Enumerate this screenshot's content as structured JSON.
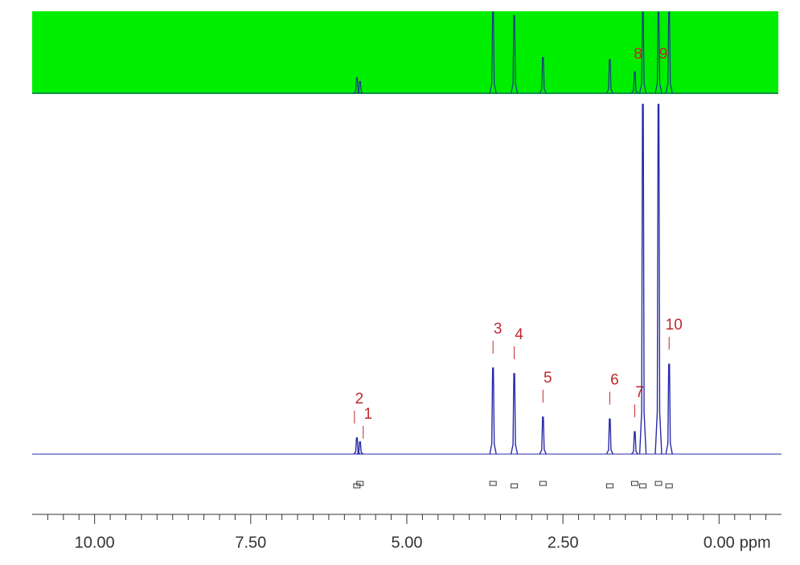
{
  "chart_data": {
    "type": "nmr",
    "xlim": [
      11.0,
      -1.0
    ],
    "ylim": [
      0,
      100
    ],
    "xticks": [
      {
        "value": 10,
        "label": "10.00"
      },
      {
        "value": 7.5,
        "label": "7.50"
      },
      {
        "value": 5,
        "label": "5.00"
      },
      {
        "value": 2.5,
        "label": "2.50"
      },
      {
        "value": 0,
        "label": "0.00"
      }
    ],
    "xminorticks": [
      10.75,
      10.5,
      10.25,
      9.75,
      9.5,
      9.25,
      9,
      8.75,
      8.5,
      8.25,
      8,
      7.75,
      7.25,
      7,
      6.75,
      6.5,
      6.25,
      6,
      5.75,
      5.5,
      5.25,
      4.75,
      4.5,
      4.25,
      4,
      3.75,
      3.5,
      3.25,
      3,
      2.75,
      2.25,
      2,
      1.75,
      1.5,
      1.25,
      1,
      0.75,
      0.5,
      0.25,
      -0.25,
      -0.5,
      -0.75
    ],
    "x_label": "ppm",
    "color": "#2b2ba8",
    "label_color": "#c0282d",
    "overview_color": "#00ee00",
    "peaks": {
      "labels": [
        "1",
        "2",
        "3",
        "4",
        "5",
        "6",
        "7",
        "8",
        "9",
        "10"
      ],
      "x": [
        5.75,
        5.8,
        3.62,
        3.28,
        2.82,
        1.75,
        1.35,
        1.22,
        0.97,
        0.8
      ],
      "values": [
        3.5,
        4.6,
        24.6,
        23,
        10.6,
        10,
        6.4,
        100,
        100,
        25.7
      ]
    }
  }
}
